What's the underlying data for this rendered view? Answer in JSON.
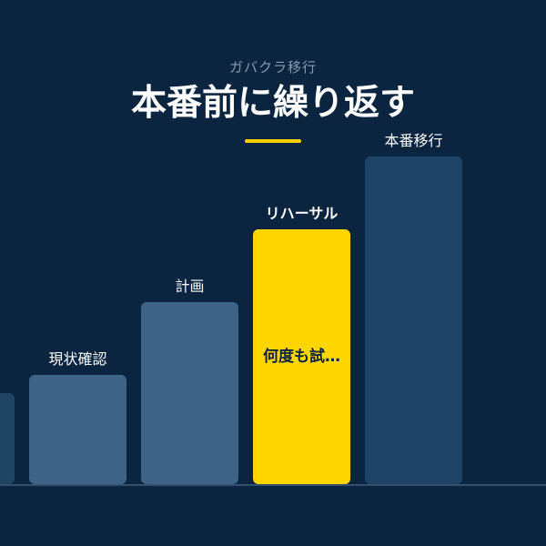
{
  "header": {
    "subtitle": "ガバクラ移行",
    "title": "本番前に繰り返す"
  },
  "colors": {
    "background": "#0b2440",
    "bar_default": "#3e6386",
    "bar_last": "#1d4466",
    "bar_edge": "#1f4563",
    "highlight": "#ffd600",
    "highlight_text": "#0b2440",
    "label_text": "#ffffff",
    "baseline": "#35506d"
  },
  "chart_data": {
    "type": "bar",
    "title": "本番前に繰り返す",
    "categories": [
      "",
      "現状確認",
      "計画",
      "リハーサル",
      "本番移行"
    ],
    "values": [
      25,
      30,
      50,
      70,
      90
    ],
    "highlight_index": 3,
    "highlight_inner_label": "何度も試…",
    "ylim": [
      0,
      100
    ],
    "grid": false,
    "legend": "none"
  }
}
